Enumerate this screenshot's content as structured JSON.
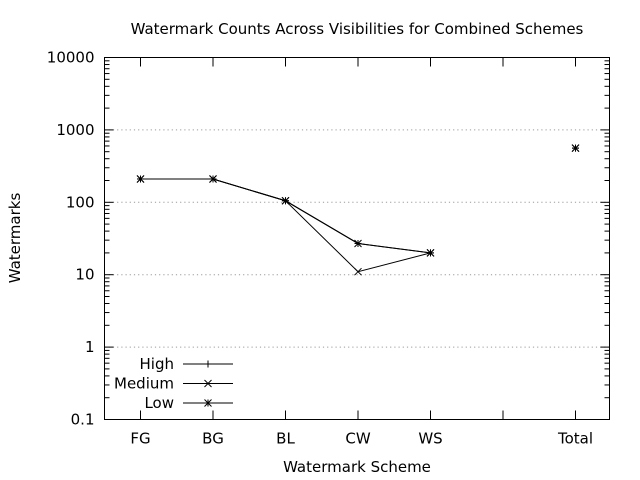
{
  "chart_data": {
    "type": "line",
    "title": "Watermark Counts Across Visibilities for Combined Schemes",
    "xlabel": "Watermark Scheme",
    "ylabel": "Watermarks",
    "categories": [
      "FG",
      "BG",
      "BL",
      "CW",
      "WS",
      "",
      "Total"
    ],
    "ylim": [
      0.1,
      10000
    ],
    "yscale": "log",
    "yticks": [
      0.1,
      1,
      10,
      100,
      1000,
      10000
    ],
    "ytick_labels": [
      "0.1",
      "1",
      "10",
      "100",
      "1000",
      "10000"
    ],
    "grid": "horizontal dotted",
    "legend_position": "bottom-left",
    "series": [
      {
        "name": "High",
        "marker": "plus",
        "values": [
          210,
          210,
          105,
          27,
          20,
          null,
          560
        ]
      },
      {
        "name": "Medium",
        "marker": "cross",
        "values": [
          210,
          210,
          105,
          11,
          20,
          null,
          560
        ]
      },
      {
        "name": "Low",
        "marker": "star",
        "values": [
          210,
          210,
          105,
          27,
          20,
          null,
          560
        ]
      }
    ]
  }
}
